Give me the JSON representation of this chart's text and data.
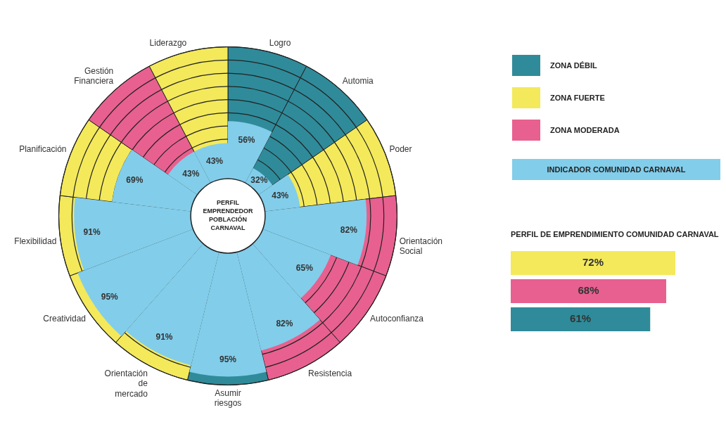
{
  "chart_data": [
    {
      "type": "other",
      "categories": [
        "Logro",
        "Automia",
        "Poder",
        "Orientación Social",
        "Autoconfianza",
        "Resistencia",
        "Asumir riesgos",
        "Orientación de mercado",
        "Creatividad",
        "Flexibilidad",
        "Planificación",
        "Gestión Financiera",
        "Liderazgo"
      ],
      "colors": [
        "#2f8b9a",
        "#2f8b9a",
        "#f3e95b",
        "#e8608f",
        "#e8608f",
        "#e8608f",
        "#2f8b9a",
        "#f3e95b",
        "#f3e95b",
        "#f3e95b",
        "#f3e95b",
        "#e8608f",
        "#f3e95b"
      ],
      "series": [
        {
          "name": "INDICADOR COMUNIDAD CARNAVAL",
          "color": "#82cdea",
          "values": [
            56,
            32,
            43,
            82,
            65,
            82,
            95,
            91,
            95,
            91,
            69,
            43,
            43
          ],
          "value_labels": [
            "56%",
            "32%",
            "43%",
            "82%",
            "65%",
            "82%",
            "95%",
            "91%",
            "95%",
            "91%",
            "69%",
            "43%",
            "43%"
          ]
        }
      ],
      "legend": "right",
      "annotations": [
        "PERFIL EMPRENDEDOR POBLACIÓN CARNAVAL",
        "ZONA DÉBIL",
        "ZONA FUERTE",
        "ZONA MODERADA"
      ]
    },
    {
      "type": "bar",
      "orientation": "horizontal",
      "title": "PERFIL DE EMPRENDIMIENTO COMUNIDAD CARNAVAL",
      "categories": [
        null,
        null,
        null
      ],
      "values": [
        72,
        68,
        61
      ],
      "colors": [
        "#f3e95b",
        "#e8608f",
        "#2f8b9a"
      ],
      "value_labels": [
        "72%",
        "68%",
        "61%"
      ],
      "tick_labels": false
    }
  ]
}
